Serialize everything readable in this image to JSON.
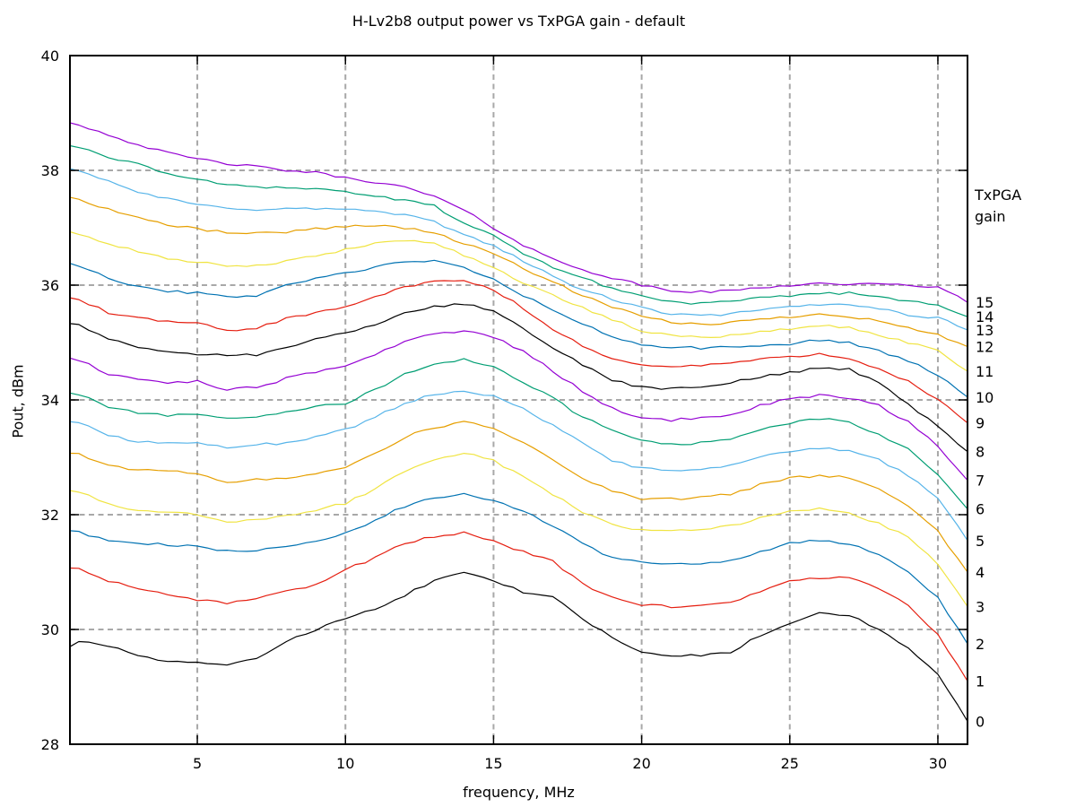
{
  "title": "H-Lv2b8 output power vs TxPGA gain - default",
  "right_header_line1": "TxPGA",
  "right_header_line2": "gain",
  "chart_data": {
    "type": "line",
    "title": "H-Lv2b8 output power vs TxPGA gain - default",
    "xlabel": "frequency, MHz",
    "ylabel": "Pout, dBm",
    "xlim": [
      0.7,
      31
    ],
    "ylim": [
      28,
      40
    ],
    "xticks": [
      5,
      10,
      15,
      20,
      25,
      30
    ],
    "yticks": [
      28,
      30,
      32,
      34,
      36,
      38,
      40
    ],
    "grid": true,
    "grid_color": "#a8a8a8",
    "border_color": "#000000",
    "legend_title": [
      "TxPGA",
      "gain"
    ],
    "legend_position": "right-of-plot",
    "x": [
      0.7,
      1,
      2,
      3,
      4,
      5,
      6,
      7,
      8,
      9,
      10,
      11,
      12,
      13,
      14,
      15,
      16,
      17,
      18,
      19,
      20,
      21,
      22,
      23,
      24,
      25,
      26,
      27,
      28,
      29,
      30,
      31
    ],
    "series": [
      {
        "name": "15",
        "color": "#9400D3",
        "values": [
          38.83,
          38.8,
          38.62,
          38.45,
          38.3,
          38.2,
          38.12,
          38.06,
          38.0,
          37.96,
          37.87,
          37.8,
          37.7,
          37.55,
          37.3,
          37.0,
          36.7,
          36.45,
          36.28,
          36.12,
          36.0,
          35.9,
          35.88,
          35.9,
          35.96,
          36.0,
          36.03,
          36.02,
          36.01,
          36.0,
          35.97,
          35.7
        ]
      },
      {
        "name": "14",
        "color": "#009E73",
        "values": [
          38.43,
          38.4,
          38.24,
          38.1,
          37.95,
          37.83,
          37.76,
          37.72,
          37.7,
          37.68,
          37.63,
          37.55,
          37.47,
          37.38,
          37.08,
          36.85,
          36.55,
          36.32,
          36.12,
          35.95,
          35.81,
          35.71,
          35.68,
          35.71,
          35.77,
          35.82,
          35.86,
          35.86,
          35.8,
          35.73,
          35.67,
          35.45
        ]
      },
      {
        "name": "13",
        "color": "#56B4E9",
        "values": [
          38.03,
          38.0,
          37.8,
          37.62,
          37.5,
          37.4,
          37.35,
          37.32,
          37.33,
          37.33,
          37.33,
          37.28,
          37.22,
          37.1,
          36.88,
          36.7,
          36.42,
          36.15,
          35.92,
          35.76,
          35.6,
          35.5,
          35.46,
          35.5,
          35.56,
          35.62,
          35.66,
          35.67,
          35.6,
          35.48,
          35.43,
          35.22
        ]
      },
      {
        "name": "12",
        "color": "#E69F00",
        "values": [
          37.53,
          37.5,
          37.32,
          37.18,
          37.05,
          36.98,
          36.92,
          36.9,
          36.93,
          36.98,
          37.03,
          37.04,
          37.0,
          36.92,
          36.72,
          36.55,
          36.3,
          36.05,
          35.82,
          35.62,
          35.45,
          35.35,
          35.32,
          35.35,
          35.4,
          35.45,
          35.5,
          35.46,
          35.38,
          35.25,
          35.13,
          34.93
        ]
      },
      {
        "name": "11",
        "color": "#F0E442",
        "values": [
          36.93,
          36.9,
          36.72,
          36.58,
          36.45,
          36.4,
          36.34,
          36.33,
          36.42,
          36.5,
          36.62,
          36.72,
          36.78,
          36.75,
          36.52,
          36.3,
          36.05,
          35.82,
          35.6,
          35.4,
          35.2,
          35.12,
          35.1,
          35.12,
          35.18,
          35.24,
          35.3,
          35.25,
          35.14,
          35.0,
          34.86,
          34.5
        ]
      },
      {
        "name": "10",
        "color": "#0072B2",
        "values": [
          36.38,
          36.35,
          36.12,
          35.98,
          35.9,
          35.86,
          35.79,
          35.82,
          36.0,
          36.12,
          36.2,
          36.32,
          36.4,
          36.42,
          36.3,
          36.1,
          35.82,
          35.57,
          35.32,
          35.1,
          34.96,
          34.92,
          34.9,
          34.92,
          34.94,
          34.97,
          35.05,
          35.0,
          34.85,
          34.68,
          34.44,
          34.05
        ]
      },
      {
        "name": "9",
        "color": "#E51E10",
        "values": [
          35.78,
          35.75,
          35.52,
          35.42,
          35.36,
          35.33,
          35.21,
          35.25,
          35.42,
          35.52,
          35.61,
          35.8,
          35.96,
          36.06,
          36.08,
          35.92,
          35.6,
          35.22,
          34.95,
          34.72,
          34.6,
          34.58,
          34.6,
          34.65,
          34.7,
          34.76,
          34.8,
          34.73,
          34.55,
          34.32,
          34.0,
          33.6
        ]
      },
      {
        "name": "8",
        "color": "#000000",
        "values": [
          35.33,
          35.3,
          35.05,
          34.92,
          34.84,
          34.8,
          34.78,
          34.78,
          34.92,
          35.05,
          35.16,
          35.32,
          35.5,
          35.62,
          35.68,
          35.55,
          35.25,
          34.92,
          34.6,
          34.35,
          34.22,
          34.19,
          34.22,
          34.3,
          34.4,
          34.48,
          34.56,
          34.54,
          34.3,
          33.92,
          33.55,
          33.1
        ]
      },
      {
        "name": "7",
        "color": "#9400D3",
        "values": [
          34.73,
          34.7,
          34.45,
          34.35,
          34.3,
          34.32,
          34.18,
          34.22,
          34.37,
          34.48,
          34.6,
          34.8,
          35.02,
          35.16,
          35.2,
          35.1,
          34.85,
          34.5,
          34.15,
          33.85,
          33.7,
          33.65,
          33.68,
          33.75,
          33.9,
          34.02,
          34.08,
          34.04,
          33.9,
          33.62,
          33.2,
          32.6
        ]
      },
      {
        "name": "6",
        "color": "#009E73",
        "values": [
          34.12,
          34.1,
          33.88,
          33.78,
          33.73,
          33.73,
          33.68,
          33.7,
          33.8,
          33.88,
          33.94,
          34.18,
          34.45,
          34.62,
          34.7,
          34.6,
          34.3,
          34.03,
          33.7,
          33.48,
          33.28,
          33.23,
          33.25,
          33.32,
          33.48,
          33.6,
          33.68,
          33.6,
          33.4,
          33.15,
          32.7,
          32.1
        ]
      },
      {
        "name": "5",
        "color": "#56B4E9",
        "values": [
          33.62,
          33.6,
          33.38,
          33.28,
          33.25,
          33.25,
          33.18,
          33.22,
          33.25,
          33.35,
          33.48,
          33.7,
          33.95,
          34.1,
          34.15,
          34.08,
          33.85,
          33.55,
          33.25,
          32.95,
          32.8,
          32.77,
          32.8,
          32.85,
          33.0,
          33.1,
          33.15,
          33.12,
          32.95,
          32.69,
          32.3,
          31.55
        ]
      },
      {
        "name": "4",
        "color": "#E69F00",
        "values": [
          33.07,
          33.05,
          32.85,
          32.78,
          32.75,
          32.72,
          32.57,
          32.62,
          32.63,
          32.72,
          32.84,
          33.05,
          33.35,
          33.52,
          33.62,
          33.5,
          33.25,
          32.96,
          32.65,
          32.4,
          32.28,
          32.27,
          32.3,
          32.35,
          32.52,
          32.65,
          32.68,
          32.65,
          32.45,
          32.15,
          31.7,
          31.0
        ]
      },
      {
        "name": "3",
        "color": "#F0E442",
        "values": [
          32.42,
          32.4,
          32.18,
          32.08,
          32.05,
          32.0,
          31.87,
          31.9,
          31.98,
          32.08,
          32.2,
          32.45,
          32.75,
          32.95,
          33.07,
          32.95,
          32.65,
          32.36,
          32.05,
          31.82,
          31.74,
          31.73,
          31.75,
          31.8,
          31.95,
          32.05,
          32.1,
          32.04,
          31.85,
          31.6,
          31.15,
          30.4
        ]
      },
      {
        "name": "2",
        "color": "#0072B2",
        "values": [
          31.72,
          31.7,
          31.55,
          31.5,
          31.48,
          31.45,
          31.36,
          31.38,
          31.44,
          31.55,
          31.67,
          31.9,
          32.15,
          32.3,
          32.35,
          32.25,
          32.05,
          31.81,
          31.5,
          31.25,
          31.16,
          31.15,
          31.16,
          31.2,
          31.35,
          31.5,
          31.55,
          31.5,
          31.3,
          31.02,
          30.55,
          29.75
        ]
      },
      {
        "name": "1",
        "color": "#E51E10",
        "values": [
          31.07,
          31.05,
          30.85,
          30.7,
          30.6,
          30.52,
          30.46,
          30.52,
          30.68,
          30.78,
          31.04,
          31.25,
          31.5,
          31.62,
          31.68,
          31.55,
          31.35,
          31.18,
          30.8,
          30.55,
          30.42,
          30.4,
          30.42,
          30.48,
          30.65,
          30.85,
          30.9,
          30.9,
          30.7,
          30.43,
          29.9,
          29.1
        ]
      },
      {
        "name": "0",
        "color": "#000000",
        "values": [
          29.7,
          29.78,
          29.72,
          29.55,
          29.45,
          29.42,
          29.4,
          29.5,
          29.78,
          30.0,
          30.2,
          30.35,
          30.6,
          30.85,
          31.0,
          30.85,
          30.65,
          30.58,
          30.2,
          29.85,
          29.6,
          29.53,
          29.55,
          29.6,
          29.9,
          30.1,
          30.28,
          30.25,
          30.0,
          29.68,
          29.2,
          28.4
        ]
      }
    ]
  }
}
